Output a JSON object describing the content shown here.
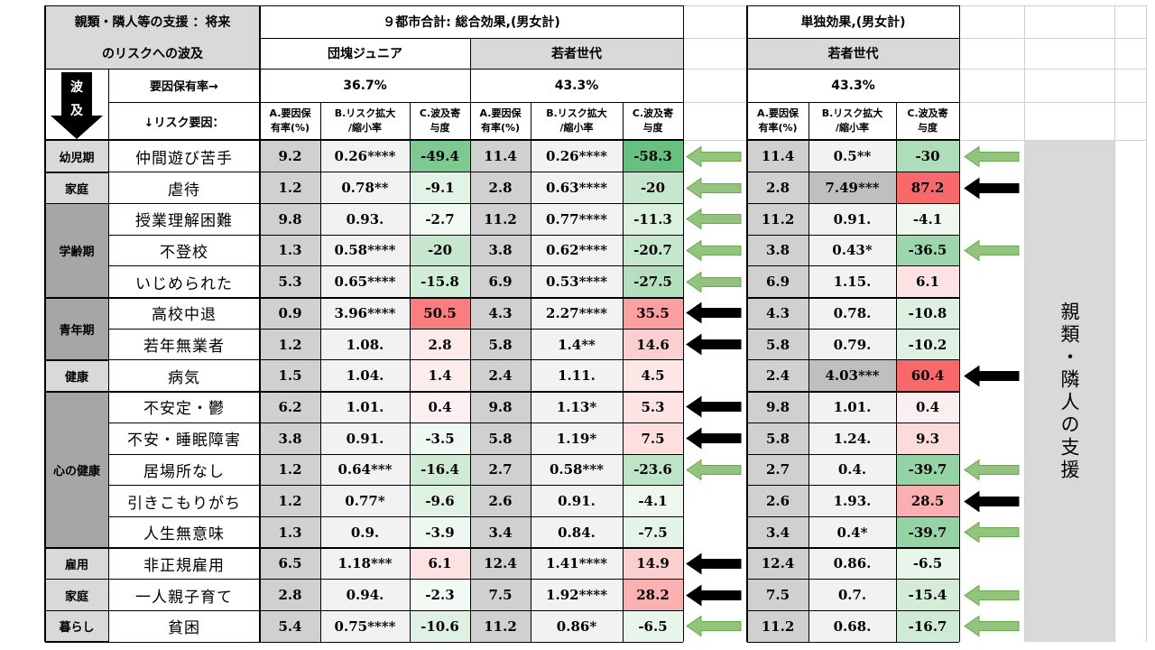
{
  "title_left": [
    "親類・隣人等の支援 ：将来",
    "のリスクへの波及"
  ],
  "group_total": "９都市合計: 総合効果,(男女計)",
  "group_single": "単独効果,(男女計)",
  "groups": [
    "団塊ジュニア",
    "若者世代",
    "若者世代"
  ],
  "rate_label": "要因保有率→",
  "risk_label": "↓リスク要因：",
  "wave_label": [
    "波",
    "及"
  ],
  "rates": [
    "36.7%",
    "43.3%",
    "43.3%"
  ],
  "col_headers": [
    "A.要因保\n有率(%)",
    "B.リスク拡大\n/縮小率",
    "C.波及寄\n与度"
  ],
  "side_label": "親類・隣人の支援",
  "stages": [
    {
      "label": "幼児期",
      "rows": 1
    },
    {
      "label": "家庭",
      "rows": 1
    },
    {
      "label": "学齢期",
      "rows": 3
    },
    {
      "label": "青年期",
      "rows": 2
    },
    {
      "label": "健康",
      "rows": 1
    },
    {
      "label": "心の健康",
      "rows": 5
    },
    {
      "label": "雇用",
      "rows": 1
    },
    {
      "label": "家庭",
      "rows": 1
    },
    {
      "label": "暮らし",
      "rows": 1
    }
  ],
  "chart_data": {
    "type": "table",
    "columns": [
      "リスク要因",
      "団塊ジュニア A",
      "団塊ジュニア B",
      "団塊ジュニア C",
      "若者世代 A",
      "若者世代 B",
      "若者世代 C",
      "単独 若者世代 A",
      "単独 若者世代 B",
      "単独 若者世代 C"
    ],
    "rows": [
      {
        "risk": "仲間遊び苦手",
        "a1": "9.2",
        "b1": "0.26****",
        "c1": -49.4,
        "a2": "11.4",
        "b2": "0.26****",
        "c2": -58.3,
        "a3": "11.4",
        "b3": "0.5**",
        "c3": -30,
        "arrow_total": "green",
        "arrow_single": "green"
      },
      {
        "risk": "虐待",
        "a1": "1.2",
        "b1": "0.78**",
        "c1": -9.1,
        "a2": "2.8",
        "b2": "0.63****",
        "c2": -20,
        "a3": "2.8",
        "b3": "7.49***",
        "c3": 87.2,
        "arrow_total": "green",
        "arrow_single": "black"
      },
      {
        "risk": "授業理解困難",
        "a1": "9.8",
        "b1": "0.93.",
        "c1": -2.7,
        "a2": "11.2",
        "b2": "0.77****",
        "c2": -11.3,
        "a3": "11.2",
        "b3": "0.91.",
        "c3": -4.1,
        "arrow_total": "green",
        "arrow_single": ""
      },
      {
        "risk": "不登校",
        "a1": "1.3",
        "b1": "0.58****",
        "c1": -20,
        "a2": "3.8",
        "b2": "0.62****",
        "c2": -20.7,
        "a3": "3.8",
        "b3": "0.43*",
        "c3": -36.5,
        "arrow_total": "green",
        "arrow_single": "green"
      },
      {
        "risk": "いじめられた",
        "a1": "5.3",
        "b1": "0.65****",
        "c1": -15.8,
        "a2": "6.9",
        "b2": "0.53****",
        "c2": -27.5,
        "a3": "6.9",
        "b3": "1.15.",
        "c3": 6.1,
        "arrow_total": "green",
        "arrow_single": ""
      },
      {
        "risk": "高校中退",
        "a1": "0.9",
        "b1": "3.96****",
        "c1": 50.5,
        "a2": "4.3",
        "b2": "2.27****",
        "c2": 35.5,
        "a3": "4.3",
        "b3": "0.78.",
        "c3": -10.8,
        "arrow_total": "black",
        "arrow_single": ""
      },
      {
        "risk": "若年無業者",
        "a1": "1.2",
        "b1": "1.08.",
        "c1": 2.8,
        "a2": "5.8",
        "b2": "1.4**",
        "c2": 14.6,
        "a3": "5.8",
        "b3": "0.79.",
        "c3": -10.2,
        "arrow_total": "black",
        "arrow_single": ""
      },
      {
        "risk": "病気",
        "a1": "1.5",
        "b1": "1.04.",
        "c1": 1.4,
        "a2": "2.4",
        "b2": "1.11.",
        "c2": 4.5,
        "a3": "2.4",
        "b3": "4.03***",
        "c3": 60.4,
        "arrow_total": "",
        "arrow_single": "black"
      },
      {
        "risk": "不安定・鬱",
        "a1": "6.2",
        "b1": "1.01.",
        "c1": 0.4,
        "a2": "9.8",
        "b2": "1.13*",
        "c2": 5.3,
        "a3": "9.8",
        "b3": "1.01.",
        "c3": 0.4,
        "arrow_total": "black",
        "arrow_single": ""
      },
      {
        "risk": "不安・睡眠障害",
        "a1": "3.8",
        "b1": "0.91.",
        "c1": -3.5,
        "a2": "5.8",
        "b2": "1.19*",
        "c2": 7.5,
        "a3": "5.8",
        "b3": "1.24.",
        "c3": 9.3,
        "arrow_total": "black",
        "arrow_single": ""
      },
      {
        "risk": "居場所なし",
        "a1": "1.2",
        "b1": "0.64***",
        "c1": -16.4,
        "a2": "2.7",
        "b2": "0.58***",
        "c2": -23.6,
        "a3": "2.7",
        "b3": "0.4.",
        "c3": -39.7,
        "arrow_total": "green",
        "arrow_single": "green"
      },
      {
        "risk": "引きこもりがち",
        "a1": "1.2",
        "b1": "0.77*",
        "c1": -9.6,
        "a2": "2.6",
        "b2": "0.91.",
        "c2": -4.1,
        "a3": "2.6",
        "b3": "1.93.",
        "c3": 28.5,
        "arrow_total": "",
        "arrow_single": "black"
      },
      {
        "risk": "人生無意味",
        "a1": "1.3",
        "b1": "0.9.",
        "c1": -3.9,
        "a2": "3.4",
        "b2": "0.84.",
        "c2": -7.5,
        "a3": "3.4",
        "b3": "0.4*",
        "c3": -39.7,
        "arrow_total": "",
        "arrow_single": "green"
      },
      {
        "risk": "非正規雇用",
        "a1": "6.5",
        "b1": "1.18***",
        "c1": 6.1,
        "a2": "12.4",
        "b2": "1.41****",
        "c2": 14.9,
        "a3": "12.4",
        "b3": "0.86.",
        "c3": -6.5,
        "arrow_total": "black",
        "arrow_single": ""
      },
      {
        "risk": "一人親子育て",
        "a1": "2.8",
        "b1": "0.94.",
        "c1": -2.3,
        "a2": "7.5",
        "b2": "1.92****",
        "c2": 28.2,
        "a3": "7.5",
        "b3": "0.7.",
        "c3": -15.4,
        "arrow_total": "black",
        "arrow_single": "green"
      },
      {
        "risk": "貧困",
        "a1": "5.4",
        "b1": "0.75****",
        "c1": -10.6,
        "a2": "11.2",
        "b2": "0.86*",
        "c2": -6.5,
        "a3": "11.2",
        "b3": "0.68.",
        "c3": -16.7,
        "arrow_total": "green",
        "arrow_single": "green"
      }
    ]
  },
  "colors": {
    "header_gray": "#d9d9d9",
    "shade_gray": "#d0d0d0",
    "light_gray": "#f2f2f2",
    "stage_dark": "#a6a6a6",
    "green_strong": "#63be7b",
    "red_strong": "#f8696b",
    "arrow_green": "#92c47d"
  }
}
